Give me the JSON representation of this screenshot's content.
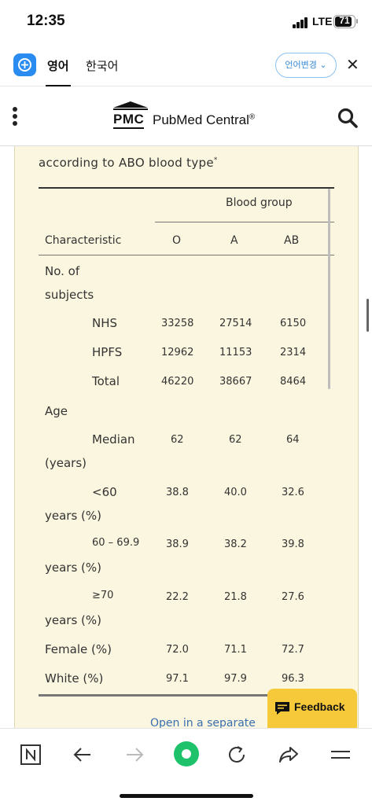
{
  "status_bar": {
    "time": "12:35",
    "network": "LTE",
    "battery": "71"
  },
  "translate_bar": {
    "active_language": "영어",
    "other_language": "한국어",
    "change_button": "언어변경",
    "logo_icon": "translate-app-icon",
    "close_icon": "close-icon"
  },
  "header": {
    "logo_mark": "PMC",
    "logo_name": "PubMed Central",
    "registered": "®",
    "search_icon": "search-icon",
    "menu_icon": "more-vertical-icon"
  },
  "table": {
    "caption": "according to ABO blood type",
    "caption_mark": "*",
    "group_header": "Blood group",
    "column_headers": [
      "Characteristic",
      "O",
      "A",
      "AB"
    ],
    "rows": [
      {
        "label": "No. of",
        "label2": "subjects",
        "indent": false,
        "values": [
          "",
          "",
          ""
        ]
      },
      {
        "label": "NHS",
        "indent": true,
        "values": [
          "33258",
          "27514",
          "6150"
        ]
      },
      {
        "label": "HPFS",
        "indent": true,
        "values": [
          "12962",
          "11153",
          "2314"
        ]
      },
      {
        "label": "Total",
        "indent": true,
        "values": [
          "46220",
          "38667",
          "8464"
        ]
      },
      {
        "label": "Age",
        "indent": false,
        "values": [
          "",
          "",
          ""
        ]
      },
      {
        "label": "Median",
        "label2": "(years)",
        "indent": true,
        "values": [
          "62",
          "62",
          "64"
        ]
      },
      {
        "label": "<60",
        "label2": "years (%)",
        "indent": true,
        "values": [
          "38.8",
          "40.0",
          "32.6"
        ]
      },
      {
        "label": "60 – 69.9",
        "label2": "years (%)",
        "indent": true,
        "values": [
          "38.9",
          "38.2",
          "39.8"
        ]
      },
      {
        "label": "≥70",
        "label2": "years (%)",
        "indent": true,
        "values": [
          "22.2",
          "21.8",
          "27.6"
        ]
      },
      {
        "label": "Female (%)",
        "indent": false,
        "values": [
          "72.0",
          "71.1",
          "72.7"
        ]
      },
      {
        "label": "White (%)",
        "indent": false,
        "values": [
          "97.1",
          "97.9",
          "96.3"
        ]
      }
    ],
    "open_link": "Open in a separate"
  },
  "feedback": {
    "label": "Feedback",
    "icon": "chat-bubble-icon"
  },
  "bottom_bar": {
    "buttons": [
      "n-logo-icon",
      "back-arrow-icon",
      "forward-arrow-icon",
      "green-dot-icon",
      "refresh-icon",
      "share-icon",
      "menu-icon"
    ]
  }
}
